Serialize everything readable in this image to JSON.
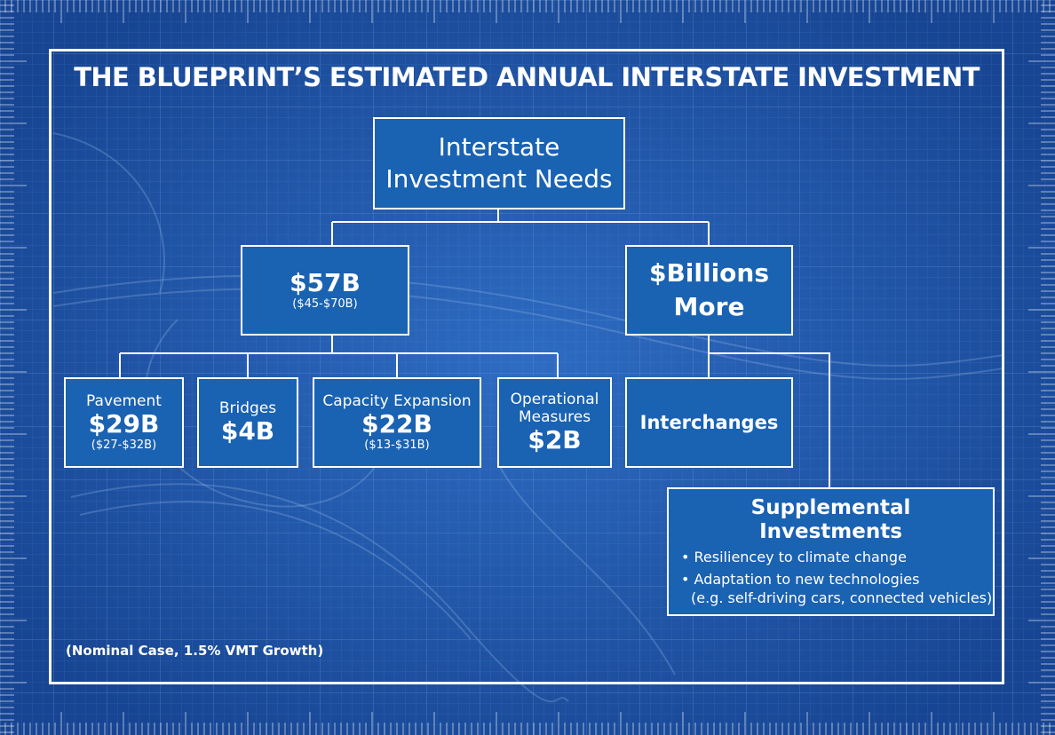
{
  "title": "THE BLUEPRINT’S ESTIMATED ANNUAL INTERSTATE INVESTMENT",
  "root": {
    "line1": "Interstate",
    "line2": "Investment Needs"
  },
  "core": {
    "value": "$57B",
    "range": "($45-$70B)"
  },
  "more": {
    "line1": "$Billions",
    "line2": "More"
  },
  "pavement": {
    "label": "Pavement",
    "value": "$29B",
    "range": "($27-$32B)"
  },
  "bridges": {
    "label": "Bridges",
    "value": "$4B"
  },
  "capacity": {
    "label": "Capacity Expansion",
    "value": "$22B",
    "range": "($13-$31B)"
  },
  "operational": {
    "label1": "Operational",
    "label2": "Measures",
    "value": "$2B"
  },
  "interchanges": {
    "label": "Interchanges"
  },
  "supplemental": {
    "line1": "Supplemental",
    "line2": "Investments",
    "bullet1": "• Resiliencey to climate change",
    "bullet2a": "• Adaptation to new technologies",
    "bullet2b": "(e.g. self-driving cars, connected vehicles)"
  },
  "footnote": "(Nominal Case, 1.5% VMT Growth)",
  "colors": {
    "background": "#1f4f9a",
    "box_fill": "#1a62b2",
    "line": "#ffffff"
  }
}
